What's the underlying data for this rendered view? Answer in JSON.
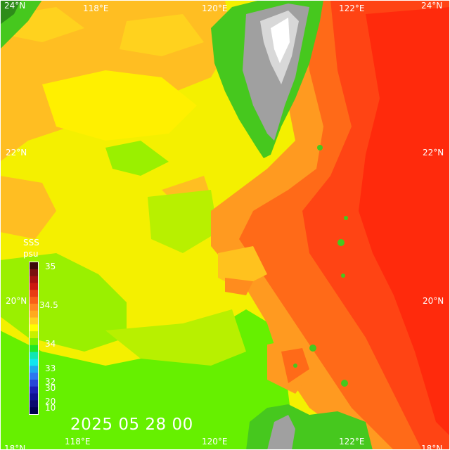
{
  "map": {
    "timestamp": "2025 05 28 00",
    "variable": "SSS",
    "unit": "psu",
    "lon_labels_top": [
      "118°E",
      "120°E",
      "122°E"
    ],
    "lon_labels_bottom": [
      "118°E",
      "120°E",
      "122°E"
    ],
    "lat_labels_left": [
      "24°N",
      "22°N",
      "20°N",
      "18°N"
    ],
    "lat_labels_right": [
      "24°N",
      "22°N",
      "20°N",
      "18°N"
    ]
  },
  "colorbar": {
    "tick_labels": [
      "35",
      "34.5",
      "34",
      "33",
      "32",
      "30",
      "20",
      "10"
    ],
    "colors_top_to_bottom": [
      "#3c0a0a",
      "#7a0f0f",
      "#a81010",
      "#cc1a10",
      "#e83c14",
      "#f86018",
      "#ff8820",
      "#ffaa1e",
      "#ffd21e",
      "#ffff00",
      "#c8f000",
      "#78f000",
      "#20e628",
      "#10e6b4",
      "#10e6f0",
      "#1ea8f0",
      "#2c78f0",
      "#2848d8",
      "#1c1eb4",
      "#101092",
      "#0a0a6e",
      "#000050"
    ],
    "colors": {
      "ocean_low": "#66f000",
      "ocean_mid": "#ffe81a",
      "ocean_high": "#ff2a0c",
      "land_green": "#3fb01a",
      "mountain_gray": "#9a9a9a",
      "mountain_peak": "#ffffff"
    }
  }
}
